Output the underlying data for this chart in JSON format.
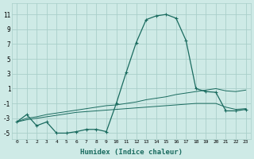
{
  "xlabel": "Humidex (Indice chaleur)",
  "xlim": [
    -0.5,
    23.5
  ],
  "ylim": [
    -5.8,
    12.5
  ],
  "yticks": [
    -5,
    -3,
    -1,
    1,
    3,
    5,
    7,
    9,
    11
  ],
  "xticks": [
    0,
    1,
    2,
    3,
    4,
    5,
    6,
    7,
    8,
    9,
    10,
    11,
    12,
    13,
    14,
    15,
    16,
    17,
    18,
    19,
    20,
    21,
    22,
    23
  ],
  "xtick_labels": [
    "0",
    "1",
    "2",
    "3",
    "4",
    "5",
    "6",
    "7",
    "8",
    "9",
    "10",
    "11",
    "12",
    "13",
    "14",
    "15",
    "16",
    "17",
    "18",
    "19",
    "20",
    "21",
    "22",
    "23"
  ],
  "background_color": "#ceeae6",
  "grid_color": "#aacfca",
  "line_color": "#1a6b5f",
  "line1_x": [
    0,
    1,
    2,
    3,
    4,
    5,
    6,
    7,
    8,
    9,
    10,
    11,
    12,
    13,
    14,
    15,
    16,
    17,
    18,
    19,
    20,
    21,
    22,
    23
  ],
  "line1_y": [
    -3.5,
    -2.5,
    -4.0,
    -3.5,
    -5.0,
    -5.0,
    -4.8,
    -4.5,
    -4.5,
    -4.8,
    -1.0,
    3.2,
    7.2,
    10.3,
    10.8,
    11.0,
    10.5,
    7.5,
    1.0,
    0.6,
    0.5,
    -2.0,
    -2.0,
    -1.8
  ],
  "line2_x": [
    0,
    1,
    2,
    3,
    4,
    5,
    6,
    7,
    8,
    9,
    10,
    11,
    12,
    13,
    14,
    15,
    16,
    17,
    18,
    19,
    20,
    21,
    22,
    23
  ],
  "line2_y": [
    -3.5,
    -3.2,
    -3.0,
    -2.8,
    -2.6,
    -2.4,
    -2.2,
    -2.1,
    -2.0,
    -1.9,
    -1.8,
    -1.7,
    -1.6,
    -1.5,
    -1.4,
    -1.3,
    -1.2,
    -1.1,
    -1.0,
    -1.0,
    -1.0,
    -1.5,
    -1.8,
    -1.7
  ],
  "line3_x": [
    0,
    1,
    2,
    3,
    4,
    5,
    6,
    7,
    8,
    9,
    10,
    11,
    12,
    13,
    14,
    15,
    16,
    17,
    18,
    19,
    20,
    21,
    22,
    23
  ],
  "line3_y": [
    -3.5,
    -3.0,
    -2.8,
    -2.5,
    -2.3,
    -2.1,
    -1.9,
    -1.7,
    -1.5,
    -1.3,
    -1.2,
    -1.0,
    -0.8,
    -0.5,
    -0.3,
    -0.1,
    0.2,
    0.4,
    0.6,
    0.8,
    1.0,
    0.7,
    0.6,
    0.8
  ]
}
